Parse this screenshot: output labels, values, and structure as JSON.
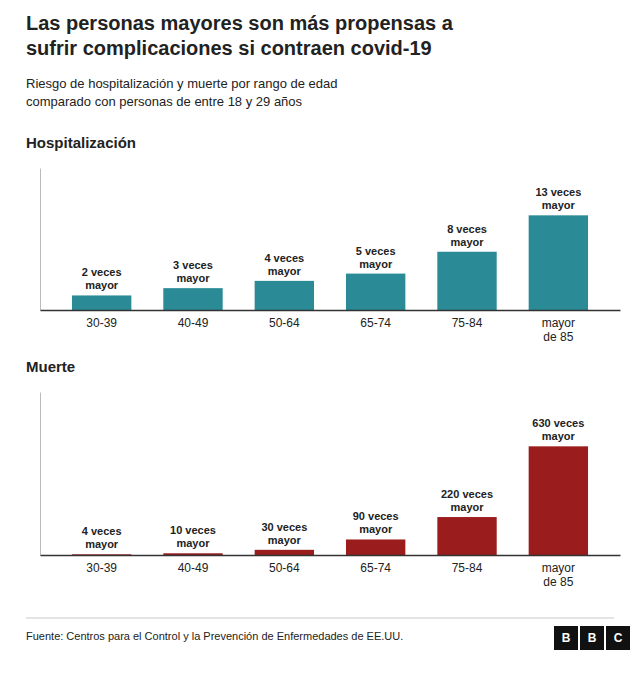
{
  "title": "Las personas mayores son más propensas a\nsufrir complicaciones si contraen covid-19",
  "subtitle": "Riesgo de hospitalización y muerte por rango de edad\ncomparado con personas de entre 18 y 29 años",
  "footer": "Fuente: Centros para el Control y la Prevención de Enfermedades de EE.UU.",
  "logo": [
    "B",
    "B",
    "C"
  ],
  "chart_data": [
    {
      "type": "bar",
      "title": "Hospitalización",
      "categories": [
        "30-39",
        "40-49",
        "50-64",
        "65-74",
        "75-84",
        "mayor\nde 85"
      ],
      "values": [
        2,
        3,
        4,
        5,
        8,
        13
      ],
      "value_labels": [
        "2 veces\nmayor",
        "3 veces\nmayor",
        "4 veces\nmayor",
        "5 veces\nmayor",
        "8 veces\nmayor",
        "13 veces\nmayor"
      ],
      "color": "#2a8a96",
      "ylim": [
        0,
        19.5
      ],
      "data_labels": true,
      "tick_labels": "x",
      "grid": false
    },
    {
      "type": "bar",
      "title": "Muerte",
      "categories": [
        "30-39",
        "40-49",
        "50-64",
        "65-74",
        "75-84",
        "mayor\nde 85"
      ],
      "values": [
        4,
        10,
        30,
        90,
        220,
        630
      ],
      "value_labels": [
        "4 veces\nmayor",
        "10 veces\nmayor",
        "30 veces\nmayor",
        "90 veces\nmayor",
        "220 veces\nmayor",
        "630 veces\nmayor"
      ],
      "color": "#9b1c1c",
      "ylim": [
        0,
        945
      ],
      "data_labels": true,
      "tick_labels": "x",
      "grid": false
    }
  ]
}
